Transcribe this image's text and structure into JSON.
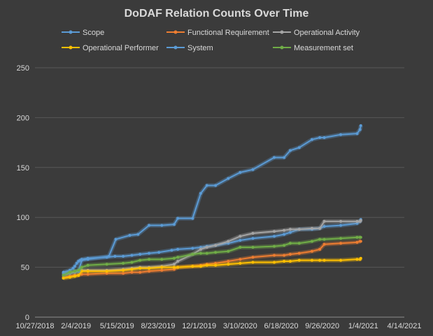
{
  "chart_data": {
    "type": "line",
    "title": "DoDAF Relation Counts Over Time",
    "xlabel": "",
    "ylabel": "",
    "ylim": [
      0,
      250
    ],
    "yticks": [
      0,
      50,
      100,
      150,
      200,
      250
    ],
    "xlim": [
      "2018-10-27",
      "2021-04-14"
    ],
    "xticks": [
      "10/27/2018",
      "2/4/2019",
      "5/15/2019",
      "8/23/2019",
      "12/1/2019",
      "3/10/2020",
      "6/18/2020",
      "9/26/2020",
      "1/4/2021",
      "4/14/2021"
    ],
    "grid": "horizontal",
    "legend_position": "top",
    "series": [
      {
        "name": "Scope",
        "color": "#5b9bd5",
        "points": [
          [
            "2019-01-04",
            45
          ],
          [
            "2019-01-20",
            47
          ],
          [
            "2019-01-28",
            49
          ],
          [
            "2019-02-01",
            51
          ],
          [
            "2019-02-06",
            54
          ],
          [
            "2019-02-10",
            56
          ],
          [
            "2019-02-14",
            57
          ],
          [
            "2019-02-18",
            58
          ],
          [
            "2019-03-05",
            59
          ],
          [
            "2019-04-20",
            60
          ],
          [
            "2019-05-10",
            61
          ],
          [
            "2019-05-30",
            61
          ],
          [
            "2019-06-20",
            62
          ],
          [
            "2019-07-10",
            63
          ],
          [
            "2019-08-01",
            64
          ],
          [
            "2019-08-25",
            65
          ],
          [
            "2019-09-25",
            67
          ],
          [
            "2019-10-10",
            68
          ],
          [
            "2019-11-15",
            69
          ],
          [
            "2019-12-05",
            70
          ],
          [
            "2019-12-20",
            71
          ],
          [
            "2020-01-10",
            72
          ],
          [
            "2020-02-10",
            74
          ],
          [
            "2020-03-10",
            77
          ],
          [
            "2020-04-10",
            79
          ],
          [
            "2020-06-01",
            81
          ],
          [
            "2020-06-25",
            83
          ],
          [
            "2020-07-10",
            85
          ],
          [
            "2020-08-01",
            88
          ],
          [
            "2020-09-01",
            88
          ],
          [
            "2020-09-20",
            89
          ],
          [
            "2020-10-01",
            91
          ],
          [
            "2020-11-10",
            92
          ],
          [
            "2020-12-20",
            94
          ],
          [
            "2020-12-27",
            96
          ],
          [
            "2020-12-29",
            98
          ]
        ]
      },
      {
        "name": "Functional Requirement",
        "color": "#ed7d31",
        "points": [
          [
            "2019-01-04",
            40
          ],
          [
            "2019-01-20",
            41
          ],
          [
            "2019-02-01",
            42
          ],
          [
            "2019-02-10",
            42
          ],
          [
            "2019-02-18",
            43
          ],
          [
            "2019-03-05",
            43
          ],
          [
            "2019-04-20",
            44
          ],
          [
            "2019-05-30",
            44
          ],
          [
            "2019-06-20",
            45
          ],
          [
            "2019-07-10",
            45
          ],
          [
            "2019-08-01",
            46
          ],
          [
            "2019-09-01",
            47
          ],
          [
            "2019-10-01",
            48
          ],
          [
            "2019-10-10",
            50
          ],
          [
            "2019-11-15",
            51
          ],
          [
            "2019-12-05",
            52
          ],
          [
            "2019-12-20",
            53
          ],
          [
            "2020-01-10",
            54
          ],
          [
            "2020-02-10",
            56
          ],
          [
            "2020-03-10",
            58
          ],
          [
            "2020-04-10",
            60
          ],
          [
            "2020-06-01",
            62
          ],
          [
            "2020-06-25",
            62
          ],
          [
            "2020-07-10",
            63
          ],
          [
            "2020-08-01",
            64
          ],
          [
            "2020-09-01",
            66
          ],
          [
            "2020-09-20",
            68
          ],
          [
            "2020-10-01",
            73
          ],
          [
            "2020-11-10",
            74
          ],
          [
            "2020-12-20",
            75
          ],
          [
            "2020-12-27",
            76
          ],
          [
            "2020-12-29",
            76
          ]
        ]
      },
      {
        "name": "Operational Activity",
        "color": "#a5a5a5",
        "points": [
          [
            "2019-01-04",
            42
          ],
          [
            "2019-01-20",
            44
          ],
          [
            "2019-02-01",
            45
          ],
          [
            "2019-02-10",
            46
          ],
          [
            "2019-02-18",
            47
          ],
          [
            "2019-03-05",
            47
          ],
          [
            "2019-04-20",
            47
          ],
          [
            "2019-05-30",
            48
          ],
          [
            "2019-06-20",
            49
          ],
          [
            "2019-07-10",
            50
          ],
          [
            "2019-08-01",
            50
          ],
          [
            "2019-09-01",
            51
          ],
          [
            "2019-10-01",
            53
          ],
          [
            "2019-10-10",
            56
          ],
          [
            "2019-11-15",
            63
          ],
          [
            "2019-12-05",
            68
          ],
          [
            "2019-12-20",
            70
          ],
          [
            "2020-01-10",
            72
          ],
          [
            "2020-02-10",
            76
          ],
          [
            "2020-03-10",
            81
          ],
          [
            "2020-04-10",
            84
          ],
          [
            "2020-06-01",
            86
          ],
          [
            "2020-06-25",
            87
          ],
          [
            "2020-07-10",
            88
          ],
          [
            "2020-08-01",
            88
          ],
          [
            "2020-09-01",
            89
          ],
          [
            "2020-09-20",
            89
          ],
          [
            "2020-10-01",
            96
          ],
          [
            "2020-11-10",
            96
          ],
          [
            "2020-12-20",
            96
          ],
          [
            "2020-12-27",
            96
          ],
          [
            "2020-12-29",
            97
          ]
        ]
      },
      {
        "name": "Operational Performer",
        "color": "#ffc000",
        "points": [
          [
            "2019-01-04",
            39
          ],
          [
            "2019-01-20",
            40
          ],
          [
            "2019-02-01",
            41
          ],
          [
            "2019-02-10",
            42
          ],
          [
            "2019-02-18",
            46
          ],
          [
            "2019-03-05",
            46
          ],
          [
            "2019-04-20",
            46
          ],
          [
            "2019-05-30",
            47
          ],
          [
            "2019-06-20",
            48
          ],
          [
            "2019-07-10",
            49
          ],
          [
            "2019-08-01",
            49
          ],
          [
            "2019-09-01",
            50
          ],
          [
            "2019-10-01",
            50
          ],
          [
            "2019-10-10",
            50
          ],
          [
            "2019-11-15",
            51
          ],
          [
            "2019-12-05",
            51
          ],
          [
            "2019-12-20",
            52
          ],
          [
            "2020-01-10",
            52
          ],
          [
            "2020-02-10",
            53
          ],
          [
            "2020-03-10",
            54
          ],
          [
            "2020-04-10",
            55
          ],
          [
            "2020-06-01",
            55
          ],
          [
            "2020-06-25",
            56
          ],
          [
            "2020-07-10",
            56
          ],
          [
            "2020-08-01",
            57
          ],
          [
            "2020-09-01",
            57
          ],
          [
            "2020-09-20",
            57
          ],
          [
            "2020-10-01",
            57
          ],
          [
            "2020-11-10",
            57
          ],
          [
            "2020-12-20",
            58
          ],
          [
            "2020-12-27",
            58
          ],
          [
            "2020-12-29",
            59
          ]
        ]
      },
      {
        "name": "System",
        "color": "#5b9bd5",
        "points": [
          [
            "2019-01-04",
            44
          ],
          [
            "2019-01-20",
            45
          ],
          [
            "2019-02-01",
            46
          ],
          [
            "2019-02-10",
            46
          ],
          [
            "2019-02-18",
            57
          ],
          [
            "2019-03-05",
            58
          ],
          [
            "2019-04-25",
            61
          ],
          [
            "2019-05-12",
            78
          ],
          [
            "2019-06-15",
            82
          ],
          [
            "2019-07-05",
            83
          ],
          [
            "2019-08-01",
            92
          ],
          [
            "2019-09-01",
            92
          ],
          [
            "2019-10-01",
            93
          ],
          [
            "2019-10-10",
            99
          ],
          [
            "2019-11-15",
            99
          ],
          [
            "2019-12-05",
            124
          ],
          [
            "2019-12-20",
            132
          ],
          [
            "2020-01-10",
            132
          ],
          [
            "2020-02-10",
            139
          ],
          [
            "2020-03-10",
            145
          ],
          [
            "2020-04-10",
            148
          ],
          [
            "2020-06-01",
            160
          ],
          [
            "2020-06-25",
            160
          ],
          [
            "2020-07-10",
            167
          ],
          [
            "2020-08-01",
            170
          ],
          [
            "2020-09-01",
            178
          ],
          [
            "2020-09-20",
            180
          ],
          [
            "2020-10-01",
            180
          ],
          [
            "2020-11-10",
            183
          ],
          [
            "2020-12-20",
            184
          ],
          [
            "2020-12-27",
            188
          ],
          [
            "2020-12-29",
            192
          ]
        ]
      },
      {
        "name": "Measurement set",
        "color": "#70ad47",
        "points": [
          [
            "2019-01-04",
            42
          ],
          [
            "2019-01-20",
            45
          ],
          [
            "2019-02-01",
            46
          ],
          [
            "2019-02-10",
            47
          ],
          [
            "2019-02-18",
            50
          ],
          [
            "2019-03-05",
            52
          ],
          [
            "2019-04-20",
            53
          ],
          [
            "2019-05-30",
            54
          ],
          [
            "2019-06-20",
            55
          ],
          [
            "2019-07-10",
            57
          ],
          [
            "2019-08-01",
            58
          ],
          [
            "2019-09-01",
            58
          ],
          [
            "2019-10-01",
            59
          ],
          [
            "2019-10-10",
            60
          ],
          [
            "2019-11-15",
            63
          ],
          [
            "2019-12-05",
            64
          ],
          [
            "2019-12-20",
            64
          ],
          [
            "2020-01-10",
            65
          ],
          [
            "2020-02-10",
            66
          ],
          [
            "2020-03-10",
            70
          ],
          [
            "2020-04-10",
            70
          ],
          [
            "2020-06-01",
            71
          ],
          [
            "2020-06-25",
            72
          ],
          [
            "2020-07-10",
            74
          ],
          [
            "2020-08-01",
            74
          ],
          [
            "2020-09-01",
            76
          ],
          [
            "2020-09-20",
            78
          ],
          [
            "2020-10-01",
            78
          ],
          [
            "2020-11-10",
            79
          ],
          [
            "2020-12-20",
            80
          ],
          [
            "2020-12-27",
            80
          ],
          [
            "2020-12-29",
            80
          ]
        ]
      }
    ]
  }
}
